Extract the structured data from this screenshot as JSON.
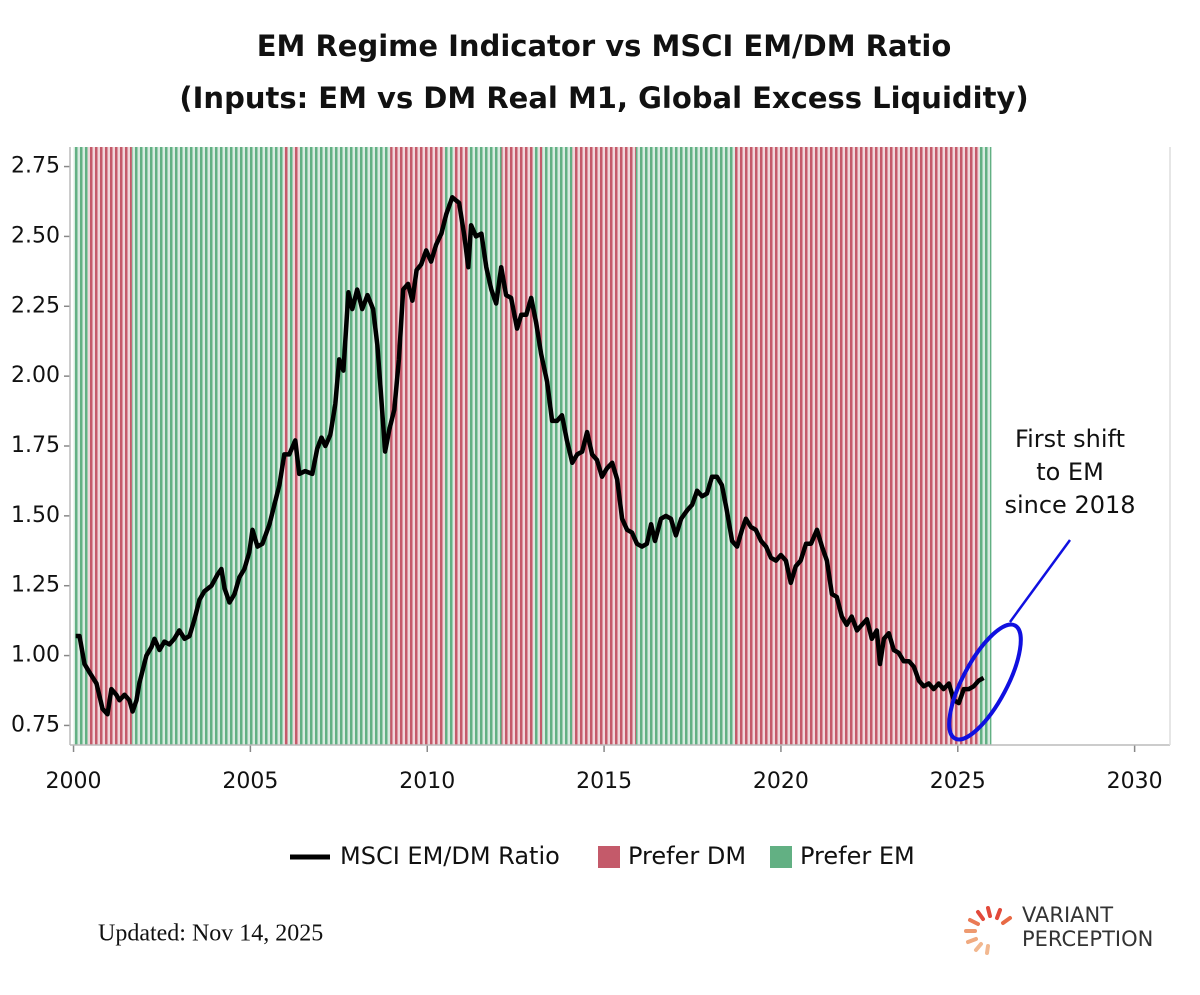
{
  "chart_data": {
    "type": "line",
    "title": [
      "EM Regime Indicator vs MSCI EM/DM Ratio",
      "(Inputs: EM vs DM Real M1, Global Excess Liquidity)"
    ],
    "annotation": [
      "First shift",
      "to EM",
      "since 2018"
    ],
    "footer": "Updated: Nov 14, 2025",
    "brand": [
      "VARIANT",
      "PERCEPTION"
    ],
    "xlim": [
      1999.9,
      2031
    ],
    "ylim": [
      0.68,
      2.82
    ],
    "xticks": [
      2000,
      2005,
      2010,
      2015,
      2020,
      2025,
      2030
    ],
    "yticks": [
      0.75,
      {
        "value": 1,
        "label": "1.00"
      },
      1.25,
      {
        "value": 1.5,
        "label": "1.50"
      },
      1.75,
      {
        "value": 2,
        "label": "2.00"
      },
      2.25,
      {
        "value": 2.5,
        "label": "2.50"
      },
      2.75
    ],
    "bands": [
      {
        "name": "Prefer DM",
        "color": "#c45a6a",
        "spans": [
          [
            2000.4,
            2001.65
          ],
          [
            2005.95,
            2006.05
          ],
          [
            2006.2,
            2006.4
          ],
          [
            2008.95,
            2010.5
          ],
          [
            2010.75,
            2011.15
          ],
          [
            2012.1,
            2013.0
          ],
          [
            2013.15,
            2013.25
          ],
          [
            2014.1,
            2015.9
          ],
          [
            2018.7,
            2025.6
          ]
        ]
      },
      {
        "name": "Prefer EM",
        "color": "#62b083",
        "spans": [
          [
            2000.0,
            2000.4
          ],
          [
            2001.65,
            2005.95
          ],
          [
            2006.05,
            2006.2
          ],
          [
            2006.4,
            2008.95
          ],
          [
            2010.5,
            2010.75
          ],
          [
            2011.15,
            2012.1
          ],
          [
            2013.0,
            2013.15
          ],
          [
            2013.25,
            2014.1
          ],
          [
            2015.9,
            2018.7
          ],
          [
            2025.6,
            2025.95
          ]
        ]
      }
    ],
    "x": [
      2000.06,
      2000.17,
      2000.31,
      2000.45,
      2000.65,
      2000.82,
      2000.96,
      2001.07,
      2001.21,
      2001.3,
      2001.44,
      2001.58,
      2001.67,
      2001.78,
      2001.86,
      2002.06,
      2002.2,
      2002.29,
      2002.43,
      2002.57,
      2002.71,
      2002.85,
      2002.99,
      2003.14,
      2003.28,
      2003.42,
      2003.56,
      2003.7,
      2003.9,
      2004.07,
      2004.18,
      2004.27,
      2004.41,
      2004.55,
      2004.69,
      2004.83,
      2004.97,
      2005.06,
      2005.2,
      2005.34,
      2005.54,
      2005.68,
      2005.82,
      2005.96,
      2006.1,
      2006.27,
      2006.38,
      2006.55,
      2006.75,
      2006.89,
      2007.01,
      2007.12,
      2007.26,
      2007.4,
      2007.51,
      2007.63,
      2007.77,
      2007.88,
      2008.02,
      2008.16,
      2008.31,
      2008.47,
      2008.59,
      2008.7,
      2008.81,
      2008.93,
      2009.07,
      2009.2,
      2009.32,
      2009.46,
      2009.58,
      2009.7,
      2009.83,
      2009.97,
      2010.11,
      2010.25,
      2010.4,
      2010.54,
      2010.71,
      2010.9,
      2011.05,
      2011.16,
      2011.24,
      2011.38,
      2011.53,
      2011.67,
      2011.81,
      2011.95,
      2012.09,
      2012.23,
      2012.37,
      2012.54,
      2012.66,
      2012.8,
      2012.94,
      2013.08,
      2013.22,
      2013.39,
      2013.53,
      2013.67,
      2013.81,
      2013.95,
      2014.1,
      2014.24,
      2014.38,
      2014.52,
      2014.66,
      2014.8,
      2014.94,
      2015.08,
      2015.23,
      2015.37,
      2015.51,
      2015.65,
      2015.79,
      2015.93,
      2016.07,
      2016.21,
      2016.33,
      2016.44,
      2016.61,
      2016.75,
      2016.89,
      2017.03,
      2017.18,
      2017.35,
      2017.49,
      2017.63,
      2017.77,
      2017.91,
      2018.05,
      2018.19,
      2018.33,
      2018.47,
      2018.62,
      2018.76,
      2018.9,
      2019.01,
      2019.15,
      2019.29,
      2019.44,
      2019.58,
      2019.72,
      2019.86,
      2020.0,
      2020.14,
      2020.28,
      2020.42,
      2020.56,
      2020.71,
      2020.85,
      2021.02,
      2021.16,
      2021.3,
      2021.44,
      2021.58,
      2021.72,
      2021.86,
      2022.0,
      2022.15,
      2022.29,
      2022.43,
      2022.57,
      2022.71,
      2022.8,
      2022.91,
      2023.05,
      2023.19,
      2023.33,
      2023.47,
      2023.62,
      2023.76,
      2023.9,
      2024.04,
      2024.18,
      2024.32,
      2024.46,
      2024.6,
      2024.75,
      2024.89,
      2025.03,
      2025.17,
      2025.31,
      2025.45,
      2025.59,
      2025.73
    ],
    "series": [
      {
        "name": "MSCI EM/DM Ratio",
        "color": "#000000",
        "values": [
          1.07,
          1.07,
          0.97,
          0.94,
          0.9,
          0.81,
          0.79,
          0.88,
          0.86,
          0.84,
          0.86,
          0.84,
          0.8,
          0.84,
          0.9,
          1.0,
          1.03,
          1.06,
          1.02,
          1.05,
          1.04,
          1.06,
          1.09,
          1.06,
          1.07,
          1.13,
          1.2,
          1.23,
          1.25,
          1.29,
          1.31,
          1.24,
          1.19,
          1.22,
          1.28,
          1.31,
          1.37,
          1.45,
          1.39,
          1.4,
          1.47,
          1.54,
          1.61,
          1.72,
          1.72,
          1.77,
          1.65,
          1.66,
          1.65,
          1.74,
          1.78,
          1.75,
          1.79,
          1.9,
          2.06,
          2.02,
          2.3,
          2.24,
          2.31,
          2.24,
          2.29,
          2.24,
          2.11,
          1.92,
          1.73,
          1.81,
          1.88,
          2.06,
          2.31,
          2.33,
          2.27,
          2.38,
          2.4,
          2.45,
          2.41,
          2.47,
          2.51,
          2.58,
          2.64,
          2.62,
          2.5,
          2.39,
          2.54,
          2.5,
          2.51,
          2.39,
          2.31,
          2.26,
          2.39,
          2.29,
          2.28,
          2.17,
          2.22,
          2.22,
          2.28,
          2.19,
          2.08,
          1.98,
          1.84,
          1.84,
          1.86,
          1.77,
          1.69,
          1.72,
          1.73,
          1.8,
          1.72,
          1.7,
          1.64,
          1.67,
          1.69,
          1.63,
          1.49,
          1.45,
          1.44,
          1.4,
          1.39,
          1.4,
          1.47,
          1.41,
          1.49,
          1.5,
          1.49,
          1.43,
          1.49,
          1.52,
          1.54,
          1.59,
          1.57,
          1.58,
          1.64,
          1.64,
          1.61,
          1.52,
          1.41,
          1.39,
          1.45,
          1.49,
          1.46,
          1.45,
          1.41,
          1.39,
          1.35,
          1.34,
          1.36,
          1.34,
          1.26,
          1.32,
          1.34,
          1.4,
          1.4,
          1.45,
          1.39,
          1.34,
          1.22,
          1.21,
          1.14,
          1.11,
          1.14,
          1.09,
          1.11,
          1.13,
          1.06,
          1.09,
          0.97,
          1.06,
          1.08,
          1.02,
          1.01,
          0.98,
          0.98,
          0.96,
          0.91,
          0.89,
          0.9,
          0.88,
          0.9,
          0.88,
          0.9,
          0.84,
          0.83,
          0.88,
          0.88,
          0.89,
          0.91,
          0.92
        ]
      }
    ]
  }
}
